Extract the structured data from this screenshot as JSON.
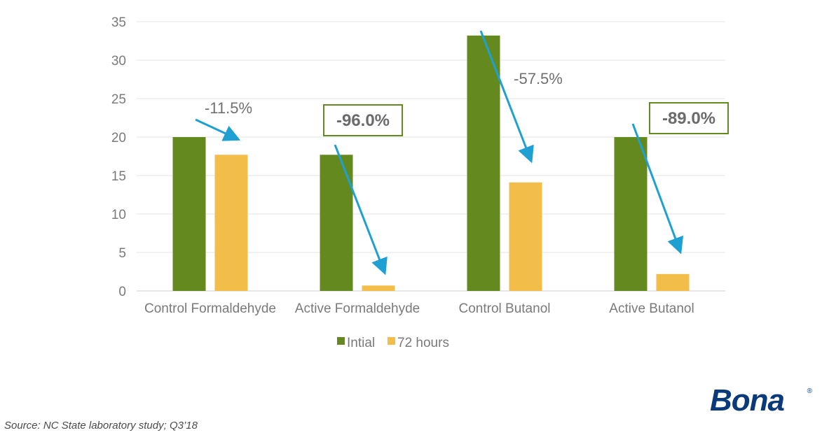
{
  "chart_data": {
    "type": "bar",
    "categories": [
      "Control Formaldehyde",
      "Active Formaldehyde",
      "Control Butanol",
      "Active Butanol"
    ],
    "series": [
      {
        "name": "Intial",
        "values": [
          20.0,
          17.7,
          33.2,
          20.0
        ],
        "color": "#64891f"
      },
      {
        "name": "72 hours",
        "values": [
          17.7,
          0.7,
          14.1,
          2.2
        ],
        "color": "#f2bd48"
      }
    ],
    "ylim": [
      0,
      35
    ],
    "yticks": [
      0,
      5,
      10,
      15,
      20,
      25,
      30,
      35
    ],
    "grid": true,
    "legend": "bottom",
    "annotations": [
      {
        "category_index": 0,
        "text": "-11.5%",
        "boxed": false
      },
      {
        "category_index": 1,
        "text": "-96.0%",
        "boxed": true
      },
      {
        "category_index": 2,
        "text": "-57.5%",
        "boxed": false
      },
      {
        "category_index": 3,
        "text": "-89.0%",
        "boxed": true
      }
    ],
    "arrow_color": "#1fa0d2",
    "box_color": "#64891f"
  },
  "footer": {
    "source": "Source: NC State laboratory study; Q3’18"
  },
  "logo": {
    "text": "Bona",
    "registered": "®"
  }
}
